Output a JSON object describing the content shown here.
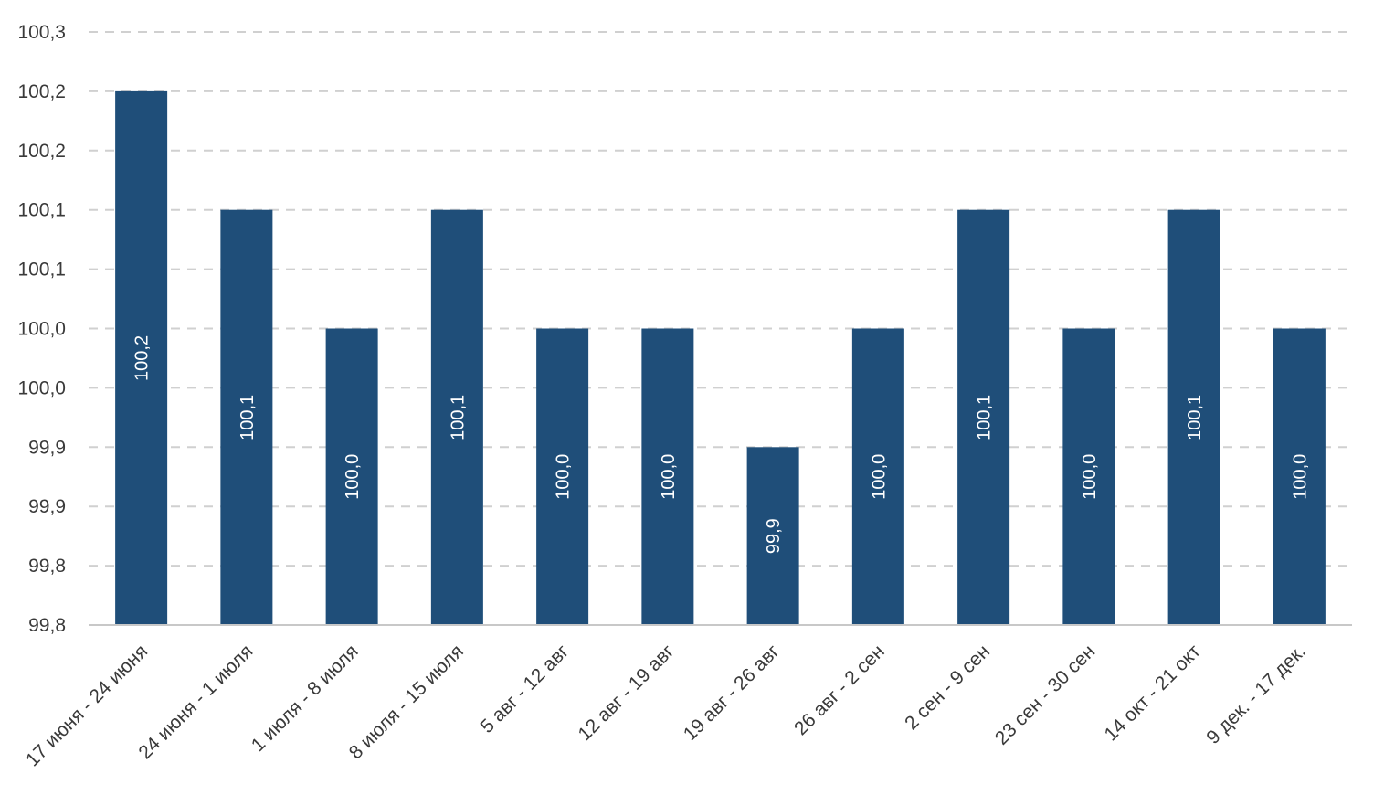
{
  "chart_data": {
    "type": "bar",
    "title": "",
    "xlabel": "",
    "ylabel": "",
    "categories": [
      "17 июня - 24 июня",
      "24 июня - 1 июля",
      "1 июля - 8 июля",
      "8 июля - 15 июля",
      "5 авг - 12 авг",
      "12 авг - 19 авг",
      "19 авг - 26 авг",
      "26 авг - 2 сен",
      "2 сен - 9 сен",
      "23 сен - 30 сен",
      "14 окт - 21 окт",
      "9 дек. - 17 дек."
    ],
    "values": [
      100.2,
      100.1,
      100.0,
      100.1,
      100.0,
      100.0,
      99.9,
      100.0,
      100.1,
      100.0,
      100.1,
      100.0
    ],
    "data_labels": [
      "100,2",
      "100,1",
      "100,0",
      "100,1",
      "100,0",
      "100,0",
      "99,9",
      "100,0",
      "100,1",
      "100,0",
      "100,1",
      "100,0"
    ],
    "ylim": [
      99.75,
      100.25
    ],
    "y_ticks": [
      99.75,
      99.8,
      99.85,
      99.9,
      99.95,
      100.0,
      100.05,
      100.1,
      100.15,
      100.2,
      100.25
    ],
    "y_tick_labels": [
      "99,8",
      "99,8",
      "99,9",
      "99,9",
      "100,0",
      "100,0",
      "100,1",
      "100,1",
      "100,2",
      "100,2",
      "100,3"
    ],
    "grid": true,
    "legend": "none",
    "colors": {
      "bar": "#1f4e79",
      "grid": "#d0d0d0",
      "axis": "#c8c8c8",
      "text": "#3a3a3a",
      "data_label": "#ffffff"
    }
  }
}
